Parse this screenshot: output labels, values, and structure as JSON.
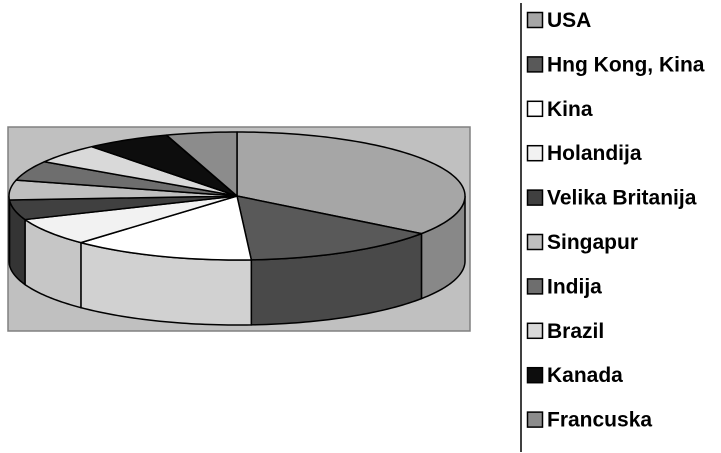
{
  "chart_data": {
    "type": "pie",
    "style": "3d",
    "title": "",
    "legend_position": "right",
    "categories": [
      "USA",
      "Hng Kong, Kina",
      "Kina",
      "Holandija",
      "Velika Britanija",
      "Singapur",
      "Indija",
      "Brazil",
      "Kanada",
      "Francuska"
    ],
    "values": [
      35,
      14,
      13,
      7,
      5,
      5,
      5,
      5,
      6,
      5
    ],
    "colors": [
      "#a6a6a6",
      "#595959",
      "#ffffff",
      "#f2f2f2",
      "#404040",
      "#bfbfbf",
      "#6e6e6e",
      "#d9d9d9",
      "#0d0d0d",
      "#8c8c8c"
    ]
  }
}
